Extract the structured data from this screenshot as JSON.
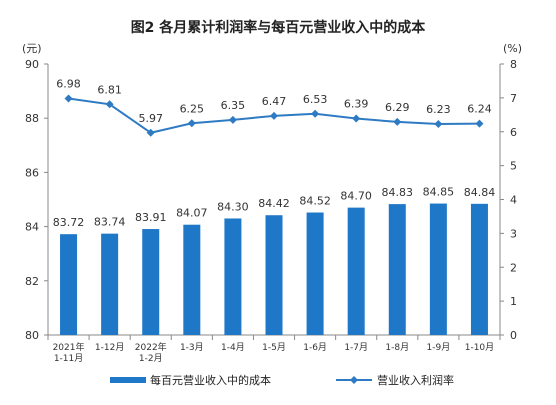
{
  "chart_data": {
    "type": "bar",
    "title": "图2 各月累计利润率与每百元营业收入中的成本",
    "left_unit": "(元)",
    "right_unit": "(%)",
    "categories": [
      [
        "2021年",
        "1-11月"
      ],
      [
        "1-12月"
      ],
      [
        "2022年",
        "1-2月"
      ],
      [
        "1-3月"
      ],
      [
        "1-4月"
      ],
      [
        "1-5月"
      ],
      [
        "1-6月"
      ],
      [
        "1-7月"
      ],
      [
        "1-8月"
      ],
      [
        "1-9月"
      ],
      [
        "1-10月"
      ]
    ],
    "ylim_left": [
      80,
      90
    ],
    "yticks_left": [
      80,
      82,
      84,
      86,
      88,
      90
    ],
    "ylim_right": [
      0,
      8
    ],
    "yticks_right": [
      0,
      1,
      2,
      3,
      4,
      5,
      6,
      7,
      8
    ],
    "grid": false,
    "legend_position": "bottom",
    "series": [
      {
        "name": "每百元营业收入中的成本",
        "type": "bar",
        "axis": "left",
        "color": "#1f77c8",
        "values": [
          83.72,
          83.74,
          83.91,
          84.07,
          84.3,
          84.42,
          84.52,
          84.7,
          84.83,
          84.85,
          84.84
        ],
        "labels": [
          "83.72",
          "83.74",
          "83.91",
          "84.07",
          "84.30",
          "84.42",
          "84.52",
          "84.70",
          "84.83",
          "84.85",
          "84.84"
        ]
      },
      {
        "name": "营业收入利润率",
        "type": "line",
        "axis": "right",
        "color": "#2e7bc4",
        "values": [
          6.98,
          6.81,
          5.97,
          6.25,
          6.35,
          6.47,
          6.53,
          6.39,
          6.29,
          6.23,
          6.24
        ],
        "labels": [
          "6.98",
          "6.81",
          "5.97",
          "6.25",
          "6.35",
          "6.47",
          "6.53",
          "6.39",
          "6.29",
          "6.23",
          "6.24"
        ]
      }
    ]
  }
}
